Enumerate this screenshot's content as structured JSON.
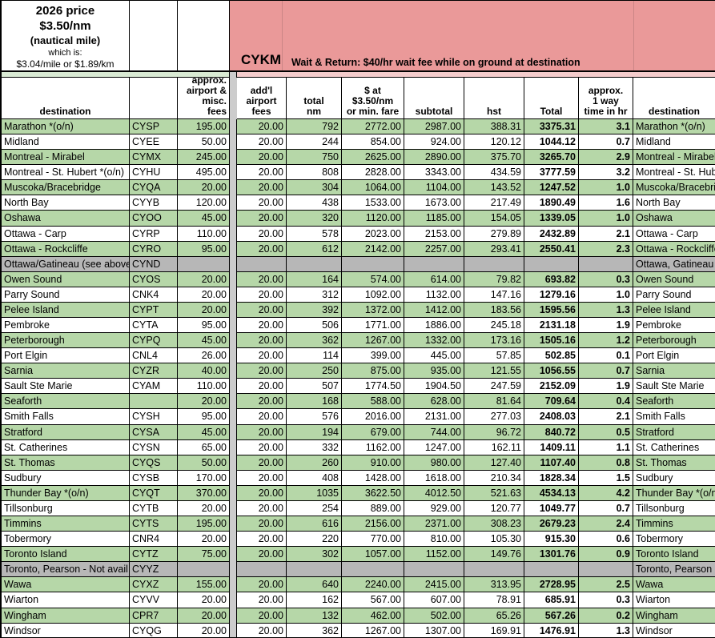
{
  "info_box": {
    "line1": "2026 price",
    "line2": "$3.50/nm",
    "line3": "(nautical mile)",
    "line4": "which is:",
    "line5": "$3.04/mile or $1.89/km"
  },
  "banner": {
    "code": "CYKM",
    "note": "Wait & Return: $40/hr wait fee while on ground at destination"
  },
  "columns": {
    "dest": "destination",
    "fees": "approx.\nairport &\nmisc. fees",
    "addl": "add'l\nairport\nfees",
    "nm": "total\nnm",
    "fare": "$ at\n$3.50/nm\nor min. fare",
    "sub": "subtotal",
    "hst": "hst",
    "total": "Total",
    "time": "approx.\n1 way\ntime in hr",
    "dest2": "destination"
  },
  "colors": {
    "row_green": "#b6d7a8",
    "banner_pink": "#ea9999",
    "row_gray": "#b7b7b7",
    "strip_light_green": "#d9ead3",
    "strip_light_pink": "#f4cccc",
    "separator_gray": "#cccccc"
  },
  "rows": [
    {
      "dest": "Marathon *(o/n)",
      "code": "CYSP",
      "fees": "195.00",
      "addl": "20.00",
      "nm": "792",
      "fare": "2772.00",
      "sub": "2987.00",
      "hst": "388.31",
      "total": "3375.31",
      "time": "3.1",
      "dest2": "Marathon *(o/n)",
      "shade": "green"
    },
    {
      "dest": "Midland",
      "code": "CYEE",
      "fees": "50.00",
      "addl": "20.00",
      "nm": "244",
      "fare": "854.00",
      "sub": "924.00",
      "hst": "120.12",
      "total": "1044.12",
      "time": "0.7",
      "dest2": "Midland",
      "shade": "white"
    },
    {
      "dest": "Montreal - Mirabel",
      "code": "CYMX",
      "fees": "245.00",
      "addl": "20.00",
      "nm": "750",
      "fare": "2625.00",
      "sub": "2890.00",
      "hst": "375.70",
      "total": "3265.70",
      "time": "2.9",
      "dest2": "Montreal - Mirabel",
      "shade": "green"
    },
    {
      "dest": "Montreal - St. Hubert *(o/n)",
      "code": "CYHU",
      "fees": "495.00",
      "addl": "20.00",
      "nm": "808",
      "fare": "2828.00",
      "sub": "3343.00",
      "hst": "434.59",
      "total": "3777.59",
      "time": "3.2",
      "dest2": "Montreal - St. Hubert *(o/n)",
      "shade": "white"
    },
    {
      "dest": "Muscoka/Bracebridge",
      "code": "CYQA",
      "fees": "20.00",
      "addl": "20.00",
      "nm": "304",
      "fare": "1064.00",
      "sub": "1104.00",
      "hst": "143.52",
      "total": "1247.52",
      "time": "1.0",
      "dest2": "Muscoka/Bracebridge",
      "shade": "green"
    },
    {
      "dest": "North Bay",
      "code": "CYYB",
      "fees": "120.00",
      "addl": "20.00",
      "nm": "438",
      "fare": "1533.00",
      "sub": "1673.00",
      "hst": "217.49",
      "total": "1890.49",
      "time": "1.6",
      "dest2": "North Bay",
      "shade": "white"
    },
    {
      "dest": "Oshawa",
      "code": "CYOO",
      "fees": "45.00",
      "addl": "20.00",
      "nm": "320",
      "fare": "1120.00",
      "sub": "1185.00",
      "hst": "154.05",
      "total": "1339.05",
      "time": "1.0",
      "dest2": "Oshawa",
      "shade": "green"
    },
    {
      "dest": "Ottawa - Carp",
      "code": "CYRP",
      "fees": "110.00",
      "addl": "20.00",
      "nm": "578",
      "fare": "2023.00",
      "sub": "2153.00",
      "hst": "279.89",
      "total": "2432.89",
      "time": "2.1",
      "dest2": "Ottawa - Carp",
      "shade": "white"
    },
    {
      "dest": "Ottawa - Rockcliffe",
      "code": "CYRO",
      "fees": "95.00",
      "addl": "20.00",
      "nm": "612",
      "fare": "2142.00",
      "sub": "2257.00",
      "hst": "293.41",
      "total": "2550.41",
      "time": "2.3",
      "dest2": "Ottawa - Rockcliffe",
      "shade": "green"
    },
    {
      "dest": "Ottawa/Gatineau (see above)",
      "code": "CYND",
      "fees": "",
      "addl": "",
      "nm": "",
      "fare": "",
      "sub": "",
      "hst": "",
      "total": "",
      "time": "",
      "dest2": "Ottawa, Gatineau",
      "shade": "gray"
    },
    {
      "dest": "Owen Sound",
      "code": "CYOS",
      "fees": "20.00",
      "addl": "20.00",
      "nm": "164",
      "fare": "574.00",
      "sub": "614.00",
      "hst": "79.82",
      "total": "693.82",
      "time": "0.3",
      "dest2": "Owen Sound",
      "shade": "green"
    },
    {
      "dest": "Parry Sound",
      "code": "CNK4",
      "fees": "20.00",
      "addl": "20.00",
      "nm": "312",
      "fare": "1092.00",
      "sub": "1132.00",
      "hst": "147.16",
      "total": "1279.16",
      "time": "1.0",
      "dest2": "Parry Sound",
      "shade": "white"
    },
    {
      "dest": "Pelee Island",
      "code": "CYPT",
      "fees": "20.00",
      "addl": "20.00",
      "nm": "392",
      "fare": "1372.00",
      "sub": "1412.00",
      "hst": "183.56",
      "total": "1595.56",
      "time": "1.3",
      "dest2": "Pelee Island",
      "shade": "green"
    },
    {
      "dest": "Pembroke",
      "code": "CYTA",
      "fees": "95.00",
      "addl": "20.00",
      "nm": "506",
      "fare": "1771.00",
      "sub": "1886.00",
      "hst": "245.18",
      "total": "2131.18",
      "time": "1.9",
      "dest2": "Pembroke",
      "shade": "white"
    },
    {
      "dest": "Peterborough",
      "code": "CYPQ",
      "fees": "45.00",
      "addl": "20.00",
      "nm": "362",
      "fare": "1267.00",
      "sub": "1332.00",
      "hst": "173.16",
      "total": "1505.16",
      "time": "1.2",
      "dest2": "Peterborough",
      "shade": "green"
    },
    {
      "dest": "Port Elgin",
      "code": "CNL4",
      "fees": "26.00",
      "addl": "20.00",
      "nm": "114",
      "fare": "399.00",
      "sub": "445.00",
      "hst": "57.85",
      "total": "502.85",
      "time": "0.1",
      "dest2": "Port Elgin",
      "shade": "white"
    },
    {
      "dest": "Sarnia",
      "code": "CYZR",
      "fees": "40.00",
      "addl": "20.00",
      "nm": "250",
      "fare": "875.00",
      "sub": "935.00",
      "hst": "121.55",
      "total": "1056.55",
      "time": "0.7",
      "dest2": "Sarnia",
      "shade": "green"
    },
    {
      "dest": "Sault Ste Marie",
      "code": "CYAM",
      "fees": "110.00",
      "addl": "20.00",
      "nm": "507",
      "fare": "1774.50",
      "sub": "1904.50",
      "hst": "247.59",
      "total": "2152.09",
      "time": "1.9",
      "dest2": "Sault Ste Marie",
      "shade": "white"
    },
    {
      "dest": "Seaforth",
      "code": "",
      "fees": "20.00",
      "addl": "20.00",
      "nm": "168",
      "fare": "588.00",
      "sub": "628.00",
      "hst": "81.64",
      "total": "709.64",
      "time": "0.4",
      "dest2": "Seaforth",
      "shade": "green"
    },
    {
      "dest": "Smith Falls",
      "code": "CYSH",
      "fees": "95.00",
      "addl": "20.00",
      "nm": "576",
      "fare": "2016.00",
      "sub": "2131.00",
      "hst": "277.03",
      "total": "2408.03",
      "time": "2.1",
      "dest2": "Smith Falls",
      "shade": "white"
    },
    {
      "dest": "Stratford",
      "code": "CYSA",
      "fees": "45.00",
      "addl": "20.00",
      "nm": "194",
      "fare": "679.00",
      "sub": "744.00",
      "hst": "96.72",
      "total": "840.72",
      "time": "0.5",
      "dest2": "Stratford",
      "shade": "green"
    },
    {
      "dest": "St. Catherines",
      "code": "CYSN",
      "fees": "65.00",
      "addl": "20.00",
      "nm": "332",
      "fare": "1162.00",
      "sub": "1247.00",
      "hst": "162.11",
      "total": "1409.11",
      "time": "1.1",
      "dest2": "St. Catherines",
      "shade": "white"
    },
    {
      "dest": "St. Thomas",
      "code": "CYQS",
      "fees": "50.00",
      "addl": "20.00",
      "nm": "260",
      "fare": "910.00",
      "sub": "980.00",
      "hst": "127.40",
      "total": "1107.40",
      "time": "0.8",
      "dest2": "St. Thomas",
      "shade": "green"
    },
    {
      "dest": "Sudbury",
      "code": "CYSB",
      "fees": "170.00",
      "addl": "20.00",
      "nm": "408",
      "fare": "1428.00",
      "sub": "1618.00",
      "hst": "210.34",
      "total": "1828.34",
      "time": "1.5",
      "dest2": "Sudbury",
      "shade": "white"
    },
    {
      "dest": "Thunder Bay *(o/n)",
      "code": "CYQT",
      "fees": "370.00",
      "addl": "20.00",
      "nm": "1035",
      "fare": "3622.50",
      "sub": "4012.50",
      "hst": "521.63",
      "total": "4534.13",
      "time": "4.2",
      "dest2": "Thunder Bay *(o/n)",
      "shade": "green"
    },
    {
      "dest": "Tillsonburg",
      "code": "CYTB",
      "fees": "20.00",
      "addl": "20.00",
      "nm": "254",
      "fare": "889.00",
      "sub": "929.00",
      "hst": "120.77",
      "total": "1049.77",
      "time": "0.7",
      "dest2": "Tillsonburg",
      "shade": "white"
    },
    {
      "dest": "Timmins",
      "code": "CYTS",
      "fees": "195.00",
      "addl": "20.00",
      "nm": "616",
      "fare": "2156.00",
      "sub": "2371.00",
      "hst": "308.23",
      "total": "2679.23",
      "time": "2.4",
      "dest2": "Timmins",
      "shade": "green"
    },
    {
      "dest": "Tobermory",
      "code": "CNR4",
      "fees": "20.00",
      "addl": "20.00",
      "nm": "220",
      "fare": "770.00",
      "sub": "810.00",
      "hst": "105.30",
      "total": "915.30",
      "time": "0.6",
      "dest2": "Tobermory",
      "shade": "white"
    },
    {
      "dest": "Toronto Island",
      "code": "CYTZ",
      "fees": "75.00",
      "addl": "20.00",
      "nm": "302",
      "fare": "1057.00",
      "sub": "1152.00",
      "hst": "149.76",
      "total": "1301.76",
      "time": "0.9",
      "dest2": "Toronto Island",
      "shade": "green"
    },
    {
      "dest": "Toronto, Pearson - Not avail.",
      "code": "CYYZ",
      "fees": "",
      "addl": "",
      "nm": "",
      "fare": "",
      "sub": "",
      "hst": "",
      "total": "",
      "time": "",
      "dest2": "Toronto, Pearson",
      "shade": "gray"
    },
    {
      "dest": "Wawa",
      "code": "CYXZ",
      "fees": "155.00",
      "addl": "20.00",
      "nm": "640",
      "fare": "2240.00",
      "sub": "2415.00",
      "hst": "313.95",
      "total": "2728.95",
      "time": "2.5",
      "dest2": "Wawa",
      "shade": "green"
    },
    {
      "dest": "Wiarton",
      "code": "CYVV",
      "fees": "20.00",
      "addl": "20.00",
      "nm": "162",
      "fare": "567.00",
      "sub": "607.00",
      "hst": "78.91",
      "total": "685.91",
      "time": "0.3",
      "dest2": "Wiarton",
      "shade": "white"
    },
    {
      "dest": "Wingham",
      "code": "CPR7",
      "fees": "20.00",
      "addl": "20.00",
      "nm": "132",
      "fare": "462.00",
      "sub": "502.00",
      "hst": "65.26",
      "total": "567.26",
      "time": "0.2",
      "dest2": "Wingham",
      "shade": "green"
    },
    {
      "dest": "Windsor",
      "code": "CYQG",
      "fees": "20.00",
      "addl": "20.00",
      "nm": "362",
      "fare": "1267.00",
      "sub": "1307.00",
      "hst": "169.91",
      "total": "1476.91",
      "time": "1.3",
      "dest2": "Windsor",
      "shade": "white"
    }
  ]
}
